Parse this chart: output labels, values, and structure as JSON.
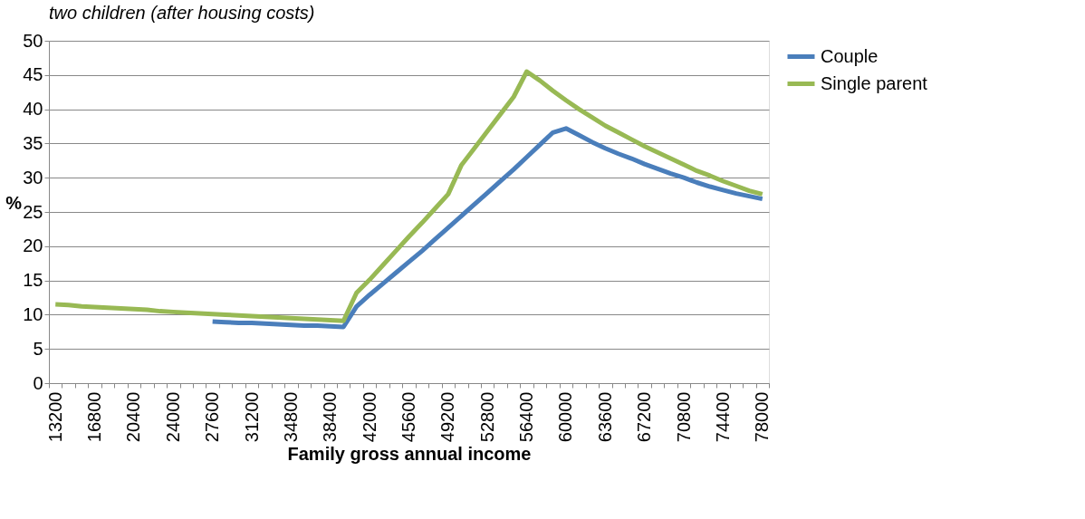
{
  "chart_data": {
    "type": "line",
    "title": "two children (after housing costs)",
    "xlabel": "Family gross annual income",
    "ylabel": "%",
    "categories": [
      "13200",
      null,
      null,
      "16800",
      null,
      null,
      "20400",
      null,
      null,
      "24000",
      null,
      null,
      "27600",
      null,
      null,
      "31200",
      null,
      null,
      "34800",
      null,
      null,
      "38400",
      null,
      null,
      "42000",
      null,
      null,
      "45600",
      null,
      null,
      "49200",
      null,
      null,
      "52800",
      null,
      null,
      "56400",
      null,
      null,
      "60000",
      null,
      null,
      "63600",
      null,
      null,
      "67200",
      null,
      null,
      "70800",
      null,
      null,
      "74400",
      null,
      null,
      "78000"
    ],
    "series": [
      {
        "name": "Couple",
        "color": "#4a7ebb",
        "values": [
          null,
          null,
          null,
          null,
          null,
          null,
          null,
          null,
          null,
          null,
          null,
          null,
          9.0,
          8.9,
          8.8,
          8.8,
          8.7,
          8.6,
          8.5,
          8.4,
          8.4,
          8.3,
          8.2,
          11.2,
          12.9,
          14.5,
          16.1,
          17.7,
          19.3,
          21.0,
          22.7,
          24.4,
          26.1,
          27.8,
          29.5,
          31.2,
          33.0,
          34.8,
          36.6,
          37.2,
          36.2,
          35.2,
          34.3,
          33.5,
          32.8,
          32.0,
          31.3,
          30.6,
          30.0,
          29.3,
          28.7,
          28.2,
          27.7,
          27.3,
          26.9
        ]
      },
      {
        "name": "Single parent",
        "color": "#98b954",
        "values": [
          11.5,
          11.4,
          11.2,
          11.1,
          11.0,
          10.9,
          10.8,
          10.7,
          10.5,
          10.4,
          10.3,
          10.2,
          10.1,
          10.0,
          9.9,
          9.8,
          9.7,
          9.6,
          9.5,
          9.4,
          9.3,
          9.2,
          9.1,
          13.2,
          15.1,
          17.2,
          19.3,
          21.4,
          23.4,
          25.5,
          27.6,
          31.8,
          34.3,
          36.8,
          39.3,
          41.8,
          45.5,
          44.2,
          42.7,
          41.3,
          40.0,
          38.8,
          37.6,
          36.6,
          35.6,
          34.6,
          33.7,
          32.8,
          31.9,
          31.0,
          30.3,
          29.5,
          28.8,
          28.1,
          27.6
        ]
      }
    ],
    "ylim": [
      0,
      50
    ],
    "yticks": [
      0,
      5,
      10,
      15,
      20,
      25,
      30,
      35,
      40,
      45,
      50
    ],
    "grid": "y",
    "legend": "right",
    "marker": "none",
    "line_style": "solid"
  }
}
